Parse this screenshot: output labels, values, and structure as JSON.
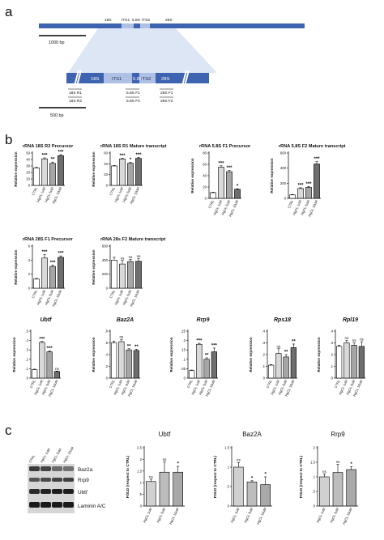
{
  "panel_letters": {
    "a": "a",
    "b": "b",
    "c": "c"
  },
  "panel_a": {
    "top_labels": [
      "18S",
      "ITS1",
      "5.8S",
      "ITS2",
      "28S"
    ],
    "scale_top": "1000 bp",
    "segments": [
      "18S",
      "ITS1",
      "5.8S",
      "ITS2",
      "28S"
    ],
    "primers": [
      "18S R1",
      "18S R2",
      "5.8S F1",
      "5.8S F2",
      "28S F1",
      "28S F2"
    ],
    "scale_bottom": "500 bp"
  },
  "legend_categories": [
    "CTRL",
    "HgCl₂ 1uM",
    "HgCl₂ 5uM",
    "HgCl₂ 10uM"
  ],
  "y_axis_label": "Relative expression",
  "chart_data": [
    {
      "type": "bar",
      "title": "rRNA 18S R2 Precursor",
      "italic": false,
      "categories": [
        "CTRL",
        "HgCl₂ 1uM",
        "HgCl₂ 5uM",
        "HgCl₂ 10uM"
      ],
      "values": [
        27,
        41,
        34,
        46
      ],
      "errors": [
        1,
        1.5,
        2,
        1.5
      ],
      "sig": [
        "",
        "***",
        "**",
        "***"
      ],
      "ylim": [
        0,
        50
      ],
      "ticks": [
        0,
        10,
        20,
        30,
        40,
        50
      ],
      "ylabel": "Relative expression"
    },
    {
      "type": "bar",
      "title": "rRNA 18S R1 Mature transcript",
      "italic": false,
      "categories": [
        "CTRL",
        "HgCl₂ 1uM",
        "HgCl₂ 5uM",
        "HgCl₂ 10uM"
      ],
      "values": [
        36,
        49,
        41,
        50
      ],
      "errors": [
        1,
        1.5,
        1.5,
        2
      ],
      "sig": [
        "",
        "***",
        "*",
        "***"
      ],
      "ylim": [
        0,
        60
      ],
      "ticks": [
        0,
        20,
        40,
        60
      ],
      "ylabel": "Relative expression"
    },
    {
      "type": "bar",
      "title": "rRNA 5.8S F1 Precursor",
      "italic": false,
      "categories": [
        "CTRL",
        "HgCl₂ 1uM",
        "HgCl₂ 5uM",
        "HgCl₂ 10uM"
      ],
      "values": [
        10,
        55,
        47,
        16
      ],
      "errors": [
        1,
        2.5,
        2,
        1
      ],
      "sig": [
        "",
        "***",
        "***",
        "*"
      ],
      "ylim": [
        0,
        80
      ],
      "ticks": [
        0,
        20,
        40,
        60,
        80
      ],
      "ylabel": "Relative expression"
    },
    {
      "type": "bar",
      "title": "rRNA 5.8S F2 Mature transcript",
      "italic": false,
      "categories": [
        "CTRL",
        "HgCl₂ 1uM",
        "HgCl₂ 5uM",
        "HgCl₂ 10uM"
      ],
      "values": [
        45,
        130,
        145,
        455
      ],
      "errors": [
        5,
        10,
        12,
        30
      ],
      "sig": [
        "",
        "***",
        "***",
        "***"
      ],
      "ylim": [
        0,
        600
      ],
      "ticks": [
        0,
        200,
        400,
        600
      ],
      "ylabel": "Relative expression"
    },
    {
      "type": "bar",
      "title": "rRNA 28S F1 Precursor",
      "italic": false,
      "categories": [
        "CTRL",
        "HgCl₂ 1uM",
        "HgCl₂ 5uM",
        "HgCl₂ 10uM"
      ],
      "values": [
        1.3,
        4.3,
        3.1,
        4.4
      ],
      "errors": [
        0.1,
        0.5,
        0.2,
        0.2
      ],
      "sig": [
        "",
        "***",
        "***",
        "***"
      ],
      "ylim": [
        0,
        6
      ],
      "ticks": [
        0,
        2,
        4,
        6
      ],
      "ylabel": "Relative expression"
    },
    {
      "type": "bar",
      "title": "rRNA 28s F2 Mature transcript",
      "italic": false,
      "categories": [
        "CTRL",
        "HgCl₂ 1uM",
        "HgCl₂ 5uM",
        "HgCl₂ 10uM"
      ],
      "values": [
        400,
        345,
        380,
        385
      ],
      "errors": [
        40,
        50,
        30,
        35
      ],
      "sig": [
        "",
        "ns",
        "ns",
        "ns"
      ],
      "ylim": [
        0,
        600
      ],
      "ticks": [
        0,
        200,
        400,
        600
      ],
      "ylabel": "Relative expression"
    },
    {
      "type": "bar",
      "title": "Ubtf",
      "italic": true,
      "categories": [
        "CTRL",
        "HgCl₂ 1uM",
        "HgCl₂ 5uM",
        "HgCl₂ 10uM"
      ],
      "values": [
        0.09,
        0.38,
        0.28,
        0.07
      ],
      "errors": [
        0.005,
        0.01,
        0.01,
        0.005
      ],
      "sig": [
        "",
        "***",
        "***",
        "ns"
      ],
      "ylim": [
        0,
        0.5
      ],
      "ticks": [
        0,
        0.1,
        0.2,
        0.3,
        0.4,
        0.5
      ],
      "ylabel": "Relative expression"
    },
    {
      "type": "bar",
      "title": "Baz2A",
      "italic": true,
      "categories": [
        "CTRL",
        "HgCl₂ 1uM",
        "HgCl₂ 5uM",
        "HgCl₂ 10uM"
      ],
      "values": [
        0.6,
        0.62,
        0.48,
        0.47
      ],
      "errors": [
        0.03,
        0.04,
        0.02,
        0.02
      ],
      "sig": [
        "",
        "ns",
        "**",
        "**"
      ],
      "ylim": [
        0,
        0.8
      ],
      "ticks": [
        0,
        0.2,
        0.4,
        0.6,
        0.8
      ],
      "ylabel": "Relative expression"
    },
    {
      "type": "bar",
      "title": "Rrp9",
      "italic": true,
      "categories": [
        "CTRL",
        "HgCl₂ 1uM",
        "HgCl₂ 5uM",
        "HgCl₂ 10uM"
      ],
      "values": [
        0.04,
        0.18,
        0.1,
        0.14
      ],
      "errors": [
        0.003,
        0.005,
        0.008,
        0.02
      ],
      "sig": [
        "",
        "***",
        "**",
        "***"
      ],
      "ylim": [
        0,
        0.25
      ],
      "ticks": [
        0,
        0.05,
        0.1,
        0.15,
        0.2,
        0.25
      ],
      "ylabel": "Relative expression"
    },
    {
      "type": "bar",
      "title": "Rps18",
      "italic": true,
      "categories": [
        "CTRL",
        "HgCl₂ 1uM",
        "HgCl₂ 5uM",
        "HgCl₂ 10uM"
      ],
      "values": [
        0.11,
        0.21,
        0.18,
        0.26
      ],
      "errors": [
        0.005,
        0.04,
        0.02,
        0.03
      ],
      "sig": [
        "",
        "ns",
        "**",
        "**"
      ],
      "ylim": [
        0,
        0.4
      ],
      "ticks": [
        0,
        0.1,
        0.2,
        0.3,
        0.4
      ],
      "ylabel": "Relative expression"
    },
    {
      "type": "bar",
      "title": "Rpl19",
      "italic": true,
      "categories": [
        "CTRL",
        "HgCl₂ 1uM",
        "HgCl₂ 5uM",
        "HgCl₂ 10uM"
      ],
      "values": [
        0.27,
        0.3,
        0.28,
        0.27
      ],
      "errors": [
        0.01,
        0.02,
        0.02,
        0.04
      ],
      "sig": [
        "",
        "ns",
        "ns",
        "ns"
      ],
      "ylim": [
        0,
        0.4
      ],
      "ticks": [
        0,
        0.1,
        0.2,
        0.3,
        0.4
      ],
      "ylabel": "Relative expression"
    },
    {
      "type": "bar",
      "title": "Ubtf",
      "italic": false,
      "categories": [
        "HgCl₂ 1uM",
        "HgCl₂ 5uM",
        "HgCl₂ 10uM"
      ],
      "values": [
        1.05,
        1.45,
        1.45
      ],
      "errors": [
        0.1,
        0.45,
        0.25
      ],
      "sig": [
        "ns",
        "ns",
        "*"
      ],
      "ylim": [
        0,
        2.5
      ],
      "ticks": [
        0,
        0.5,
        1,
        1.5,
        2,
        2.5
      ],
      "ylabel": "FOLD (respect to CTRL)"
    },
    {
      "type": "bar",
      "title": "Baz2A",
      "italic": false,
      "categories": [
        "HgCl₂ 1uM",
        "HgCl₂ 5uM",
        "HgCl₂ 10uM"
      ],
      "values": [
        1.0,
        0.62,
        0.55
      ],
      "errors": [
        0.12,
        0.03,
        0.2
      ],
      "sig": [
        "ns",
        "*",
        "*"
      ],
      "ylim": [
        0,
        1.5
      ],
      "ticks": [
        0,
        0.5,
        1,
        1.5
      ],
      "ylabel": "FOLD (respect to CTRL)"
    },
    {
      "type": "bar",
      "title": "Rrp9",
      "italic": false,
      "categories": [
        "HgCl₂ 1uM",
        "HgCl₂ 5uM",
        "HgCl₂ 10uM"
      ],
      "values": [
        1.0,
        1.15,
        1.25
      ],
      "errors": [
        0.1,
        0.28,
        0.1
      ],
      "sig": [
        "ns",
        "ns",
        "*"
      ],
      "ylim": [
        0,
        2
      ],
      "ticks": [
        0,
        0.5,
        1,
        1.5,
        2
      ],
      "ylabel": "FOLD (respect to CTRL)"
    }
  ],
  "blot": {
    "lanes": [
      "CTRL",
      "HgCl₂ 1uM",
      "HgCl₂ 5uM",
      "HgCl₂ 10uM"
    ],
    "rows": [
      "Baz2a",
      "Rrp9",
      "Ubtf",
      "Laminin A/C"
    ]
  },
  "colors": {
    "ctrl": "#ffffff",
    "c1": "#d9d9d9",
    "c5": "#a6a6a6",
    "c10": "#6e6e6e",
    "gene_blue": "#3e63b0",
    "gene_light": "#aec0e4",
    "zoom": "#dde6f5"
  }
}
